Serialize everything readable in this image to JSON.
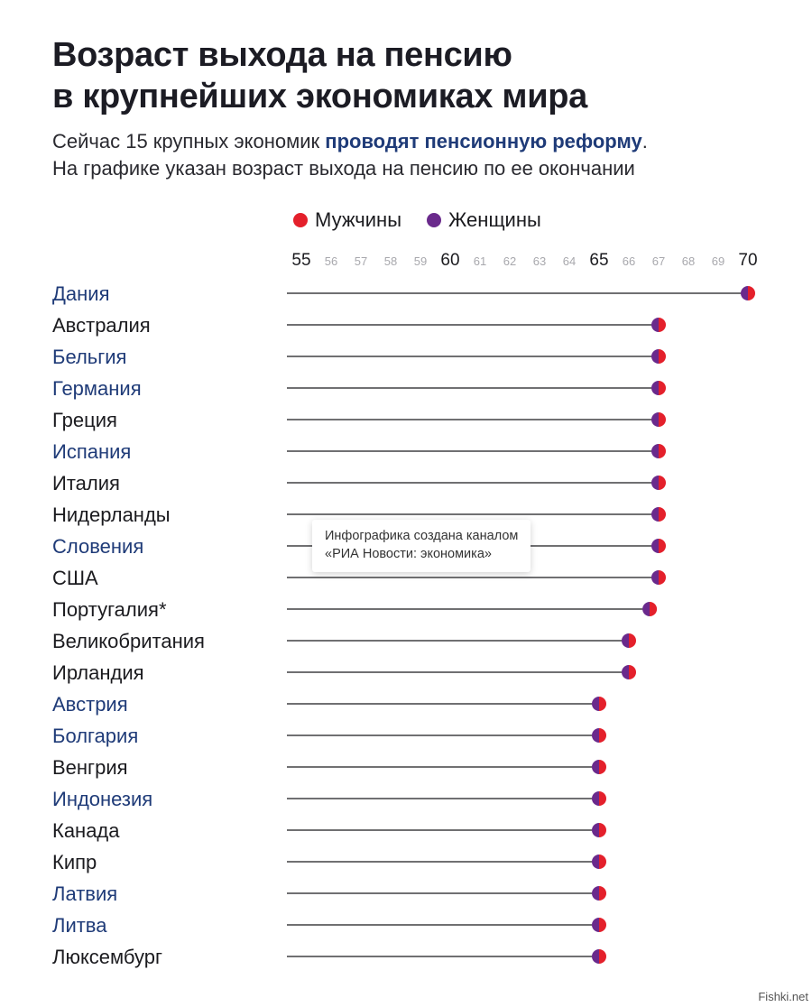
{
  "title": {
    "line1": "Возраст выхода на пенсию",
    "line2": "в крупнейших экономиках мира"
  },
  "subtitle": {
    "line1_pre": "Сейчас 15 крупных экономик ",
    "line1_highlight": "проводят пенсионную реформу",
    "line1_post": ".",
    "line2": "На графике указан возраст выхода на пенсию по ее окончании"
  },
  "legend": {
    "men": "Мужчины",
    "women": "Женщины"
  },
  "note": {
    "line1": "Инфографика создана каналом",
    "line2": "«РИА Новости: экономика»"
  },
  "watermark": "Fishki.net",
  "colors": {
    "men": "#e4202b",
    "women": "#6a2a8c",
    "country_highlight": "#1f3b78",
    "country_default": "#1b1b1f",
    "line": "#1b1b1f",
    "tick_major": "#1b1b1f",
    "tick_minor": "#a8a8ad"
  },
  "chart_data": {
    "type": "dot-plot",
    "xlim": [
      55,
      70
    ],
    "major_ticks": [
      55,
      60,
      65,
      70
    ],
    "ticks": [
      "55",
      "56",
      "57",
      "58",
      "59",
      "60",
      "61",
      "62",
      "63",
      "64",
      "65",
      "66",
      "67",
      "68",
      "69",
      "70"
    ],
    "series": [
      {
        "name": "Мужчины"
      },
      {
        "name": "Женщины"
      }
    ],
    "rows": [
      {
        "country": "Дания",
        "men": 70,
        "women": 70,
        "highlight": true
      },
      {
        "country": "Австралия",
        "men": 67,
        "women": 67,
        "highlight": false
      },
      {
        "country": "Бельгия",
        "men": 67,
        "women": 67,
        "highlight": true
      },
      {
        "country": "Германия",
        "men": 67,
        "women": 67,
        "highlight": true
      },
      {
        "country": "Греция",
        "men": 67,
        "women": 67,
        "highlight": false
      },
      {
        "country": "Испания",
        "men": 67,
        "women": 67,
        "highlight": true
      },
      {
        "country": "Италия",
        "men": 67,
        "women": 67,
        "highlight": false
      },
      {
        "country": "Нидерланды",
        "men": 67,
        "women": 67,
        "highlight": false
      },
      {
        "country": "Словения",
        "men": 67,
        "women": 67,
        "highlight": true
      },
      {
        "country": "США",
        "men": 67,
        "women": 67,
        "highlight": false
      },
      {
        "country": "Португалия*",
        "men": 66.7,
        "women": 66.7,
        "highlight": false
      },
      {
        "country": "Великобритания",
        "men": 66,
        "women": 66,
        "highlight": false
      },
      {
        "country": "Ирландия",
        "men": 66,
        "women": 66,
        "highlight": false
      },
      {
        "country": "Австрия",
        "men": 65,
        "women": 65,
        "highlight": true
      },
      {
        "country": "Болгария",
        "men": 65,
        "women": 65,
        "highlight": true
      },
      {
        "country": "Венгрия",
        "men": 65,
        "women": 65,
        "highlight": false
      },
      {
        "country": "Индонезия",
        "men": 65,
        "women": 65,
        "highlight": true
      },
      {
        "country": "Канада",
        "men": 65,
        "women": 65,
        "highlight": false
      },
      {
        "country": "Кипр",
        "men": 65,
        "women": 65,
        "highlight": false
      },
      {
        "country": "Латвия",
        "men": 65,
        "women": 65,
        "highlight": true
      },
      {
        "country": "Литва",
        "men": 65,
        "women": 65,
        "highlight": true
      },
      {
        "country": "Люксембург",
        "men": 65,
        "women": 65,
        "highlight": false
      }
    ]
  }
}
